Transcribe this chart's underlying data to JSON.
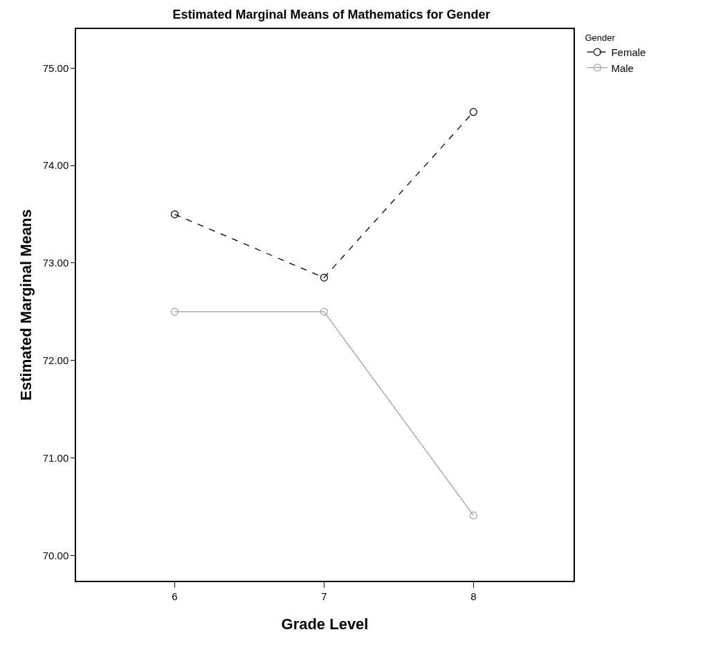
{
  "chart_data": {
    "type": "line",
    "title": "Estimated Marginal Means of Mathematics for Gender",
    "xlabel": "Grade Level",
    "ylabel": "Estimated Marginal Means",
    "legend_title": "Gender",
    "x": [
      6,
      7,
      8
    ],
    "xlim": [
      5.34,
      8.67
    ],
    "xticks": [
      6,
      7,
      8
    ],
    "ylim": [
      69.74,
      75.4
    ],
    "yticks": [
      {
        "value": 70,
        "label": "70.00"
      },
      {
        "value": 71,
        "label": "71.00"
      },
      {
        "value": 72,
        "label": "72.00"
      },
      {
        "value": 73,
        "label": "73.00"
      },
      {
        "value": 74,
        "label": "74.00"
      },
      {
        "value": 75,
        "label": "75.00"
      }
    ],
    "series": [
      {
        "name": "Female",
        "color": "#000000",
        "line_style": "dashed",
        "values": [
          73.5,
          72.85,
          74.55
        ]
      },
      {
        "name": "Male",
        "color": "#a0a0a0",
        "line_style": "solid",
        "values": [
          72.5,
          72.5,
          70.41
        ]
      }
    ],
    "marker": "circle",
    "legend": "top right"
  }
}
